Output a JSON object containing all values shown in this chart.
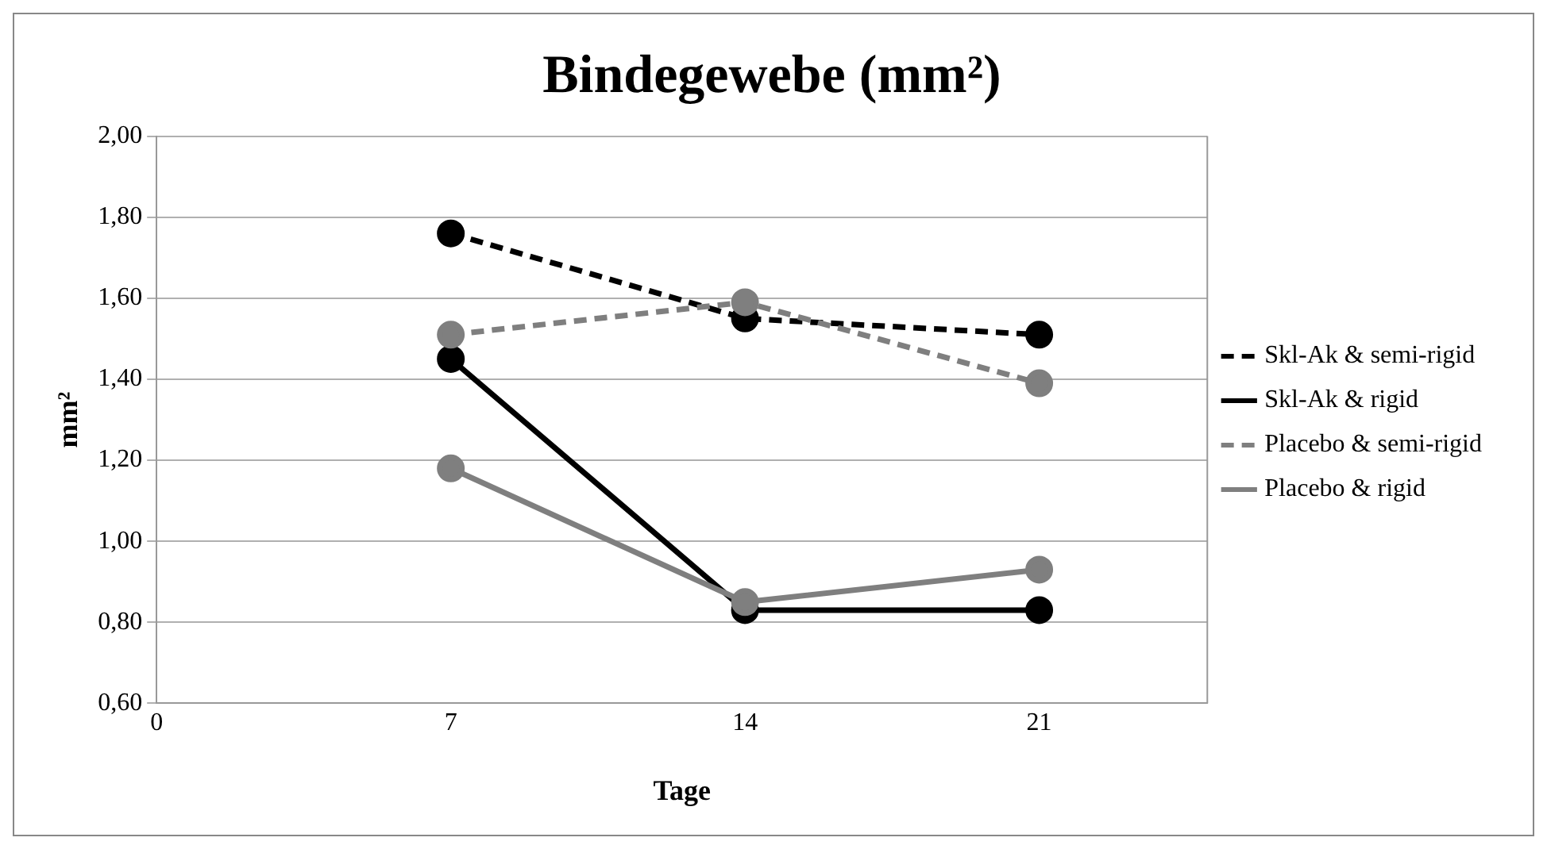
{
  "chart_data": {
    "type": "line",
    "title": "Bindegewebe (mm²)",
    "xlabel": "Tage",
    "ylabel": "mm²",
    "x": [
      7,
      14,
      21
    ],
    "series": [
      {
        "name": "Skl-Ak & semi-rigid",
        "color": "#000000",
        "line_style": "dashed",
        "values": [
          1.76,
          1.55,
          1.51
        ]
      },
      {
        "name": "Skl-Ak & rigid",
        "color": "#000000",
        "line_style": "solid",
        "values": [
          1.45,
          0.83,
          0.83
        ]
      },
      {
        "name": "Placebo & semi-rigid",
        "color": "#7f7f7f",
        "line_style": "dashed",
        "values": [
          1.51,
          1.59,
          1.39
        ]
      },
      {
        "name": "Placebo & rigid",
        "color": "#7f7f7f",
        "line_style": "solid",
        "values": [
          1.18,
          0.85,
          0.93
        ]
      }
    ],
    "xlim": [
      0,
      25
    ],
    "xticks": [
      0,
      7,
      14,
      21
    ],
    "ylim": [
      0.6,
      2.0
    ],
    "yticks": [
      {
        "value": 0.6,
        "label": "0,60"
      },
      {
        "value": 0.8,
        "label": "0,80"
      },
      {
        "value": 1.0,
        "label": "1,00"
      },
      {
        "value": 1.2,
        "label": "1,20"
      },
      {
        "value": 1.4,
        "label": "1,40"
      },
      {
        "value": 1.6,
        "label": "1,60"
      },
      {
        "value": 1.8,
        "label": "1,80"
      },
      {
        "value": 2.0,
        "label": "2,00"
      }
    ],
    "grid": "y",
    "legend": "right",
    "marker": "circle"
  }
}
